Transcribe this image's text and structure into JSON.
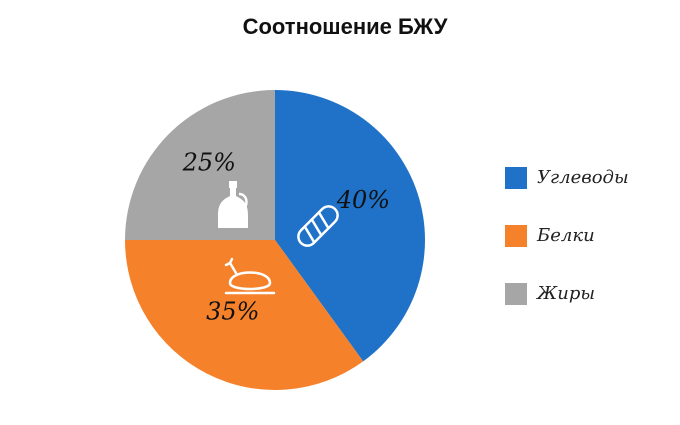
{
  "chart_data": {
    "type": "pie",
    "title": "Соотношение БЖУ",
    "categories": [
      "Углеводы",
      "Белки",
      "Жиры"
    ],
    "values": [
      40,
      35,
      25
    ],
    "value_labels": [
      "40%",
      "35%",
      "25%"
    ],
    "colors": [
      "#1f72c8",
      "#f5812a",
      "#a6a6a6"
    ],
    "legend": "right"
  }
}
